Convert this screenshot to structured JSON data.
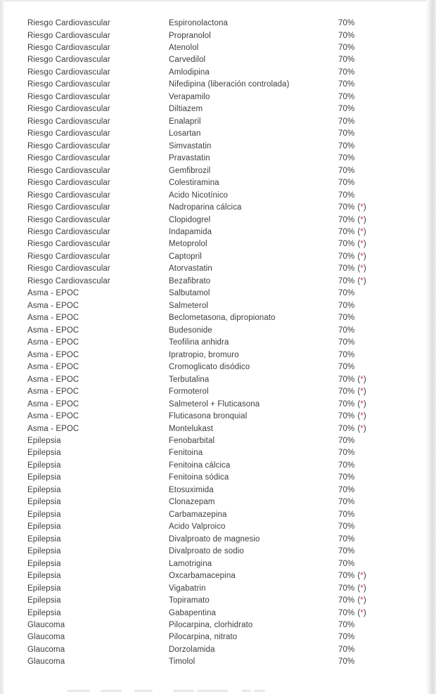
{
  "colors": {
    "text": "#3d3d3d",
    "asterisk_red": "#d9413d"
  },
  "asterisk_note": {
    "open": "(",
    "star": "*",
    "close": ")"
  },
  "table": {
    "columns": [
      "category",
      "drug",
      "coverage"
    ],
    "rows": [
      {
        "category": "Riesgo Cardiovascular",
        "drug": "Espironolactona",
        "coverage": "70%",
        "asterisk": false
      },
      {
        "category": "Riesgo Cardiovascular",
        "drug": "Propranolol",
        "coverage": "70%",
        "asterisk": false
      },
      {
        "category": "Riesgo Cardiovascular",
        "drug": "Atenolol",
        "coverage": "70%",
        "asterisk": false
      },
      {
        "category": "Riesgo Cardiovascular",
        "drug": "Carvedilol",
        "coverage": "70%",
        "asterisk": false
      },
      {
        "category": "Riesgo Cardiovascular",
        "drug": "Amlodipina",
        "coverage": "70%",
        "asterisk": false
      },
      {
        "category": "Riesgo Cardiovascular",
        "drug": "Nifedipina (liberación controlada)",
        "coverage": "70%",
        "asterisk": false
      },
      {
        "category": "Riesgo Cardiovascular",
        "drug": "Verapamilo",
        "coverage": "70%",
        "asterisk": false
      },
      {
        "category": "Riesgo Cardiovascular",
        "drug": "Diltiazem",
        "coverage": "70%",
        "asterisk": false
      },
      {
        "category": "Riesgo Cardiovascular",
        "drug": "Enalapril",
        "coverage": "70%",
        "asterisk": false
      },
      {
        "category": "Riesgo Cardiovascular",
        "drug": "Losartan",
        "coverage": "70%",
        "asterisk": false
      },
      {
        "category": "Riesgo Cardiovascular",
        "drug": "Simvastatin",
        "coverage": "70%",
        "asterisk": false
      },
      {
        "category": "Riesgo Cardiovascular",
        "drug": "Pravastatin",
        "coverage": "70%",
        "asterisk": false
      },
      {
        "category": "Riesgo Cardiovascular",
        "drug": "Gemfibrozil",
        "coverage": "70%",
        "asterisk": false
      },
      {
        "category": "Riesgo Cardiovascular",
        "drug": "Colestiramina",
        "coverage": "70%",
        "asterisk": false
      },
      {
        "category": "Riesgo Cardiovascular",
        "drug": "Acido Nicotínico",
        "coverage": "70%",
        "asterisk": false
      },
      {
        "category": "Riesgo Cardiovascular",
        "drug": "Nadroparina cálcica",
        "coverage": "70%",
        "asterisk": true
      },
      {
        "category": "Riesgo Cardiovascular",
        "drug": "Clopidogrel",
        "coverage": "70%",
        "asterisk": true
      },
      {
        "category": "Riesgo Cardiovascular",
        "drug": "Indapamida",
        "coverage": "70%",
        "asterisk": true
      },
      {
        "category": "Riesgo Cardiovascular",
        "drug": "Metoprolol",
        "coverage": "70%",
        "asterisk": true
      },
      {
        "category": "Riesgo Cardiovascular",
        "drug": "Captopril",
        "coverage": "70%",
        "asterisk": true
      },
      {
        "category": "Riesgo Cardiovascular",
        "drug": "Atorvastatin",
        "coverage": "70%",
        "asterisk": true
      },
      {
        "category": "Riesgo Cardiovascular",
        "drug": "Bezafibrato",
        "coverage": "70%",
        "asterisk": true
      },
      {
        "category": "Asma - EPOC",
        "drug": "Salbutamol",
        "coverage": "70%",
        "asterisk": false
      },
      {
        "category": "Asma - EPOC",
        "drug": "Salmeterol",
        "coverage": "70%",
        "asterisk": false
      },
      {
        "category": "Asma - EPOC",
        "drug": "Beclometasona, dipropionato",
        "coverage": "70%",
        "asterisk": false
      },
      {
        "category": "Asma - EPOC",
        "drug": "Budesonide",
        "coverage": "70%",
        "asterisk": false
      },
      {
        "category": "Asma - EPOC",
        "drug": "Teofilina anhidra",
        "coverage": "70%",
        "asterisk": false
      },
      {
        "category": "Asma - EPOC",
        "drug": "Ipratropio, bromuro",
        "coverage": "70%",
        "asterisk": false
      },
      {
        "category": "Asma - EPOC",
        "drug": "Cromoglicato disódico",
        "coverage": "70%",
        "asterisk": false
      },
      {
        "category": "Asma - EPOC",
        "drug": "Terbutalina",
        "coverage": "70%",
        "asterisk": true
      },
      {
        "category": "Asma - EPOC",
        "drug": "Formoterol",
        "coverage": "70%",
        "asterisk": true
      },
      {
        "category": "Asma - EPOC",
        "drug": "Salmeterol + Fluticasona",
        "coverage": "70%",
        "asterisk": true
      },
      {
        "category": "Asma - EPOC",
        "drug": "Fluticasona bronquial",
        "coverage": "70%",
        "asterisk": true
      },
      {
        "category": "Asma - EPOC",
        "drug": "Montelukast",
        "coverage": "70%",
        "asterisk": true
      },
      {
        "category": "Epilepsia",
        "drug": "Fenobarbital",
        "coverage": "70%",
        "asterisk": false
      },
      {
        "category": "Epilepsia",
        "drug": "Fenitoina",
        "coverage": "70%",
        "asterisk": false
      },
      {
        "category": "Epilepsia",
        "drug": "Fenitoina cálcica",
        "coverage": "70%",
        "asterisk": false
      },
      {
        "category": "Epilepsia",
        "drug": "Fenitoina sódica",
        "coverage": "70%",
        "asterisk": false
      },
      {
        "category": "Epilepsia",
        "drug": "Etosuximida",
        "coverage": "70%",
        "asterisk": false
      },
      {
        "category": "Epilepsia",
        "drug": "Clonazepam",
        "coverage": "70%",
        "asterisk": false
      },
      {
        "category": "Epilepsia",
        "drug": "Carbamazepina",
        "coverage": "70%",
        "asterisk": false
      },
      {
        "category": "Epilepsia",
        "drug": "Acido Valproico",
        "coverage": "70%",
        "asterisk": false
      },
      {
        "category": "Epilepsia",
        "drug": "Divalproato de magnesio",
        "coverage": "70%",
        "asterisk": false
      },
      {
        "category": "Epilepsia",
        "drug": "Divalproato de sodio",
        "coverage": "70%",
        "asterisk": false
      },
      {
        "category": "Epilepsia",
        "drug": "Lamotrigina",
        "coverage": "70%",
        "asterisk": false
      },
      {
        "category": "Epilepsia",
        "drug": "Oxcarbamacepina",
        "coverage": "70%",
        "asterisk": true
      },
      {
        "category": "Epilepsia",
        "drug": "Vigabatrin",
        "coverage": "70%",
        "asterisk": true
      },
      {
        "category": "Epilepsia",
        "drug": "Topiramato",
        "coverage": "70%",
        "asterisk": true
      },
      {
        "category": "Epilepsia",
        "drug": "Gabapentina",
        "coverage": "70%",
        "asterisk": true
      },
      {
        "category": "Glaucoma",
        "drug": "Pilocarpina, clorhidrato",
        "coverage": "70%",
        "asterisk": false
      },
      {
        "category": "Glaucoma",
        "drug": "Pilocarpina, nitrato",
        "coverage": "70%",
        "asterisk": false
      },
      {
        "category": "Glaucoma",
        "drug": "Dorzolamida",
        "coverage": "70%",
        "asterisk": false
      },
      {
        "category": "Glaucoma",
        "drug": "Timolol",
        "coverage": "70%",
        "asterisk": false
      }
    ]
  }
}
